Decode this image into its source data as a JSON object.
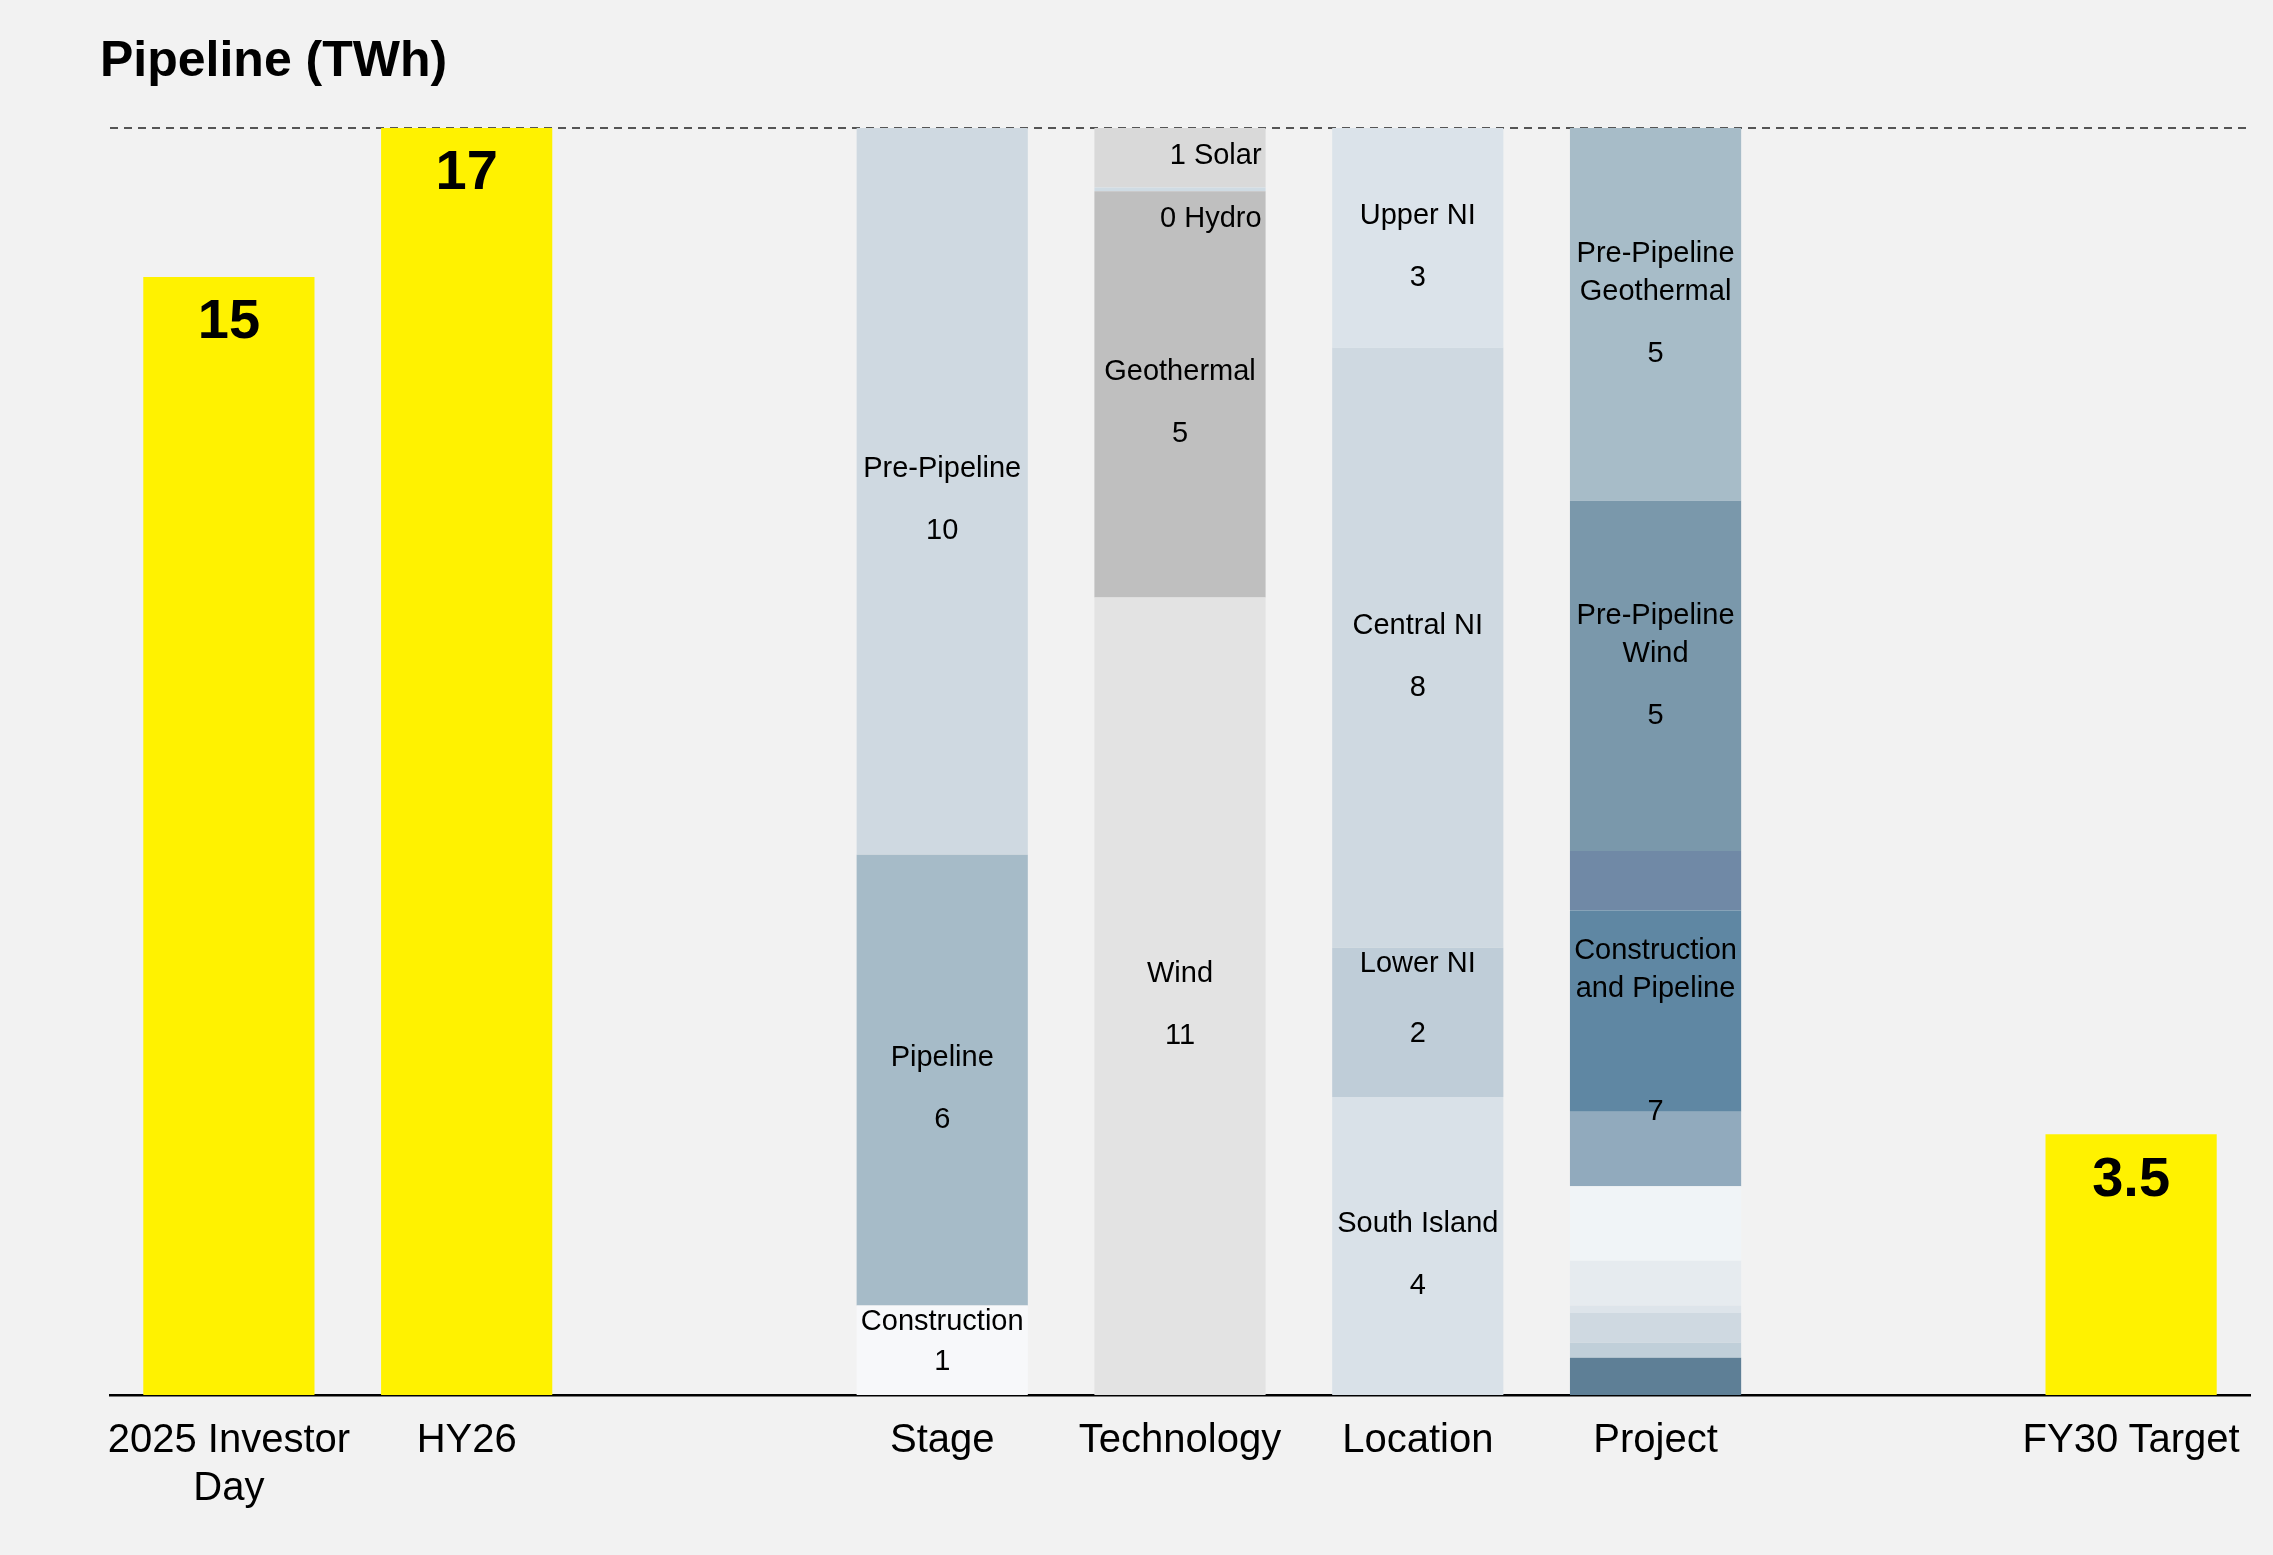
{
  "chart_data": {
    "type": "bar",
    "title": "Pipeline (TWh)",
    "stacked": true,
    "categories": [
      "2025 Investor Day",
      "HY26",
      null,
      "Stage",
      "Technology",
      "Location",
      "Project",
      null,
      "FY30 Target"
    ],
    "ylim": [
      0,
      17
    ],
    "tick_labels": "x",
    "grid": false,
    "legend": false,
    "series": [
      {
        "color": "#fff200",
        "values": [
          15,
          17,
          null,
          null,
          null,
          null,
          null,
          null,
          3.5
        ],
        "value_labels": [
          "15",
          "17",
          null,
          null,
          null,
          null,
          null,
          null,
          "3.5"
        ]
      },
      {
        "name": "Construction",
        "color": "#f7f8fa",
        "values": [
          null,
          null,
          null,
          1.2,
          null,
          null,
          null,
          null,
          null
        ],
        "value_labels": [
          null,
          null,
          null,
          "1",
          null,
          null,
          null,
          null,
          null
        ]
      },
      {
        "name": "Pipeline",
        "color": "#a6bbc8",
        "values": [
          null,
          null,
          null,
          6.05,
          null,
          null,
          null,
          null,
          null
        ],
        "value_labels": [
          null,
          null,
          null,
          "6",
          null,
          null,
          null,
          null,
          null
        ]
      },
      {
        "name": "Pre-Pipeline",
        "color": "#cfd9e1",
        "values": [
          null,
          null,
          null,
          9.75,
          null,
          null,
          null,
          null,
          null
        ],
        "value_labels": [
          null,
          null,
          null,
          "10",
          null,
          null,
          null,
          null,
          null
        ]
      },
      {
        "name": "Wind",
        "color": "#e3e3e3",
        "values": [
          null,
          null,
          null,
          null,
          10.7,
          null,
          null,
          null,
          null
        ],
        "value_labels": [
          null,
          null,
          null,
          null,
          "11",
          null,
          null,
          null,
          null
        ]
      },
      {
        "name": "Geothermal",
        "color": "#bfbfbf",
        "values": [
          null,
          null,
          null,
          null,
          5.45,
          null,
          null,
          null,
          null
        ],
        "value_labels": [
          null,
          null,
          null,
          null,
          "5",
          null,
          null,
          null,
          null
        ]
      },
      {
        "name": "Hydro",
        "color": "#cfdbe3",
        "values": [
          null,
          null,
          null,
          null,
          0.05,
          null,
          null,
          null,
          null
        ],
        "value_labels": [
          null,
          null,
          null,
          null,
          "0",
          null,
          null,
          null,
          null
        ]
      },
      {
        "name": "Solar",
        "color": "#d9d9d9",
        "values": [
          null,
          null,
          null,
          null,
          0.85,
          null,
          null,
          null,
          null
        ],
        "value_labels": [
          null,
          null,
          null,
          null,
          "1",
          null,
          null,
          null,
          null
        ]
      },
      {
        "name": "South Island",
        "color": "#d9e1e8",
        "values": [
          null,
          null,
          null,
          null,
          null,
          4.0,
          null,
          null,
          null
        ],
        "value_labels": [
          null,
          null,
          null,
          null,
          null,
          "4",
          null,
          null,
          null
        ]
      },
      {
        "name": "Lower NI",
        "color": "#bfcdd8",
        "values": [
          null,
          null,
          null,
          null,
          null,
          2.0,
          null,
          null,
          null
        ],
        "value_labels": [
          null,
          null,
          null,
          null,
          null,
          "2",
          null,
          null,
          null
        ]
      },
      {
        "name": "Central NI",
        "color": "#cfd9e1",
        "values": [
          null,
          null,
          null,
          null,
          null,
          8.05,
          null,
          null,
          null
        ],
        "value_labels": [
          null,
          null,
          null,
          null,
          null,
          "8",
          null,
          null,
          null
        ]
      },
      {
        "name": "Upper NI",
        "color": "#dbe3ea",
        "values": [
          null,
          null,
          null,
          null,
          null,
          2.95,
          null,
          null,
          null
        ],
        "value_labels": [
          null,
          null,
          null,
          null,
          null,
          "3",
          null,
          null,
          null
        ]
      },
      {
        "color": "#5e7f96",
        "values": [
          null,
          null,
          null,
          null,
          null,
          null,
          0.5,
          null,
          null
        ]
      },
      {
        "color": "#c0cfd9",
        "values": [
          null,
          null,
          null,
          null,
          null,
          null,
          0.2,
          null,
          null
        ]
      },
      {
        "color": "#cfd9e1",
        "values": [
          null,
          null,
          null,
          null,
          null,
          null,
          0.4,
          null,
          null
        ]
      },
      {
        "color": "#dde4ea",
        "values": [
          null,
          null,
          null,
          null,
          null,
          null,
          0.1,
          null,
          null
        ]
      },
      {
        "color": "#e6ebef",
        "values": [
          null,
          null,
          null,
          null,
          null,
          null,
          0.6,
          null,
          null
        ]
      },
      {
        "color": "#f0f4f7",
        "values": [
          null,
          null,
          null,
          null,
          null,
          null,
          1.0,
          null,
          null
        ]
      },
      {
        "color": "#91aabd",
        "values": [
          null,
          null,
          null,
          null,
          null,
          null,
          1.0,
          null,
          null
        ]
      },
      {
        "name": "Construction and Pipeline",
        "color": "#5f87a3",
        "values": [
          null,
          null,
          null,
          null,
          null,
          null,
          2.7,
          null,
          null
        ]
      },
      {
        "color": "#7089a6",
        "values": [
          null,
          null,
          null,
          null,
          null,
          null,
          0.8,
          null,
          null
        ]
      },
      {
        "name": "Pre-Pipeline Wind",
        "color": "#7a98ab",
        "values": [
          null,
          null,
          null,
          null,
          null,
          null,
          4.7,
          null,
          null
        ],
        "value_labels": [
          null,
          null,
          null,
          null,
          null,
          null,
          "5",
          null,
          null
        ]
      },
      {
        "name": "Pre-Pipeline Geothermal",
        "color": "#a7bcc8",
        "values": [
          null,
          null,
          null,
          null,
          null,
          null,
          5.0,
          null,
          null
        ],
        "value_labels": [
          null,
          null,
          null,
          null,
          null,
          null,
          "5",
          null,
          null
        ]
      }
    ],
    "ref_lines": [
      {
        "axis": "y",
        "value": 17,
        "line_style": "dashed",
        "color": "#555555"
      }
    ],
    "annotations": [
      "7"
    ]
  }
}
